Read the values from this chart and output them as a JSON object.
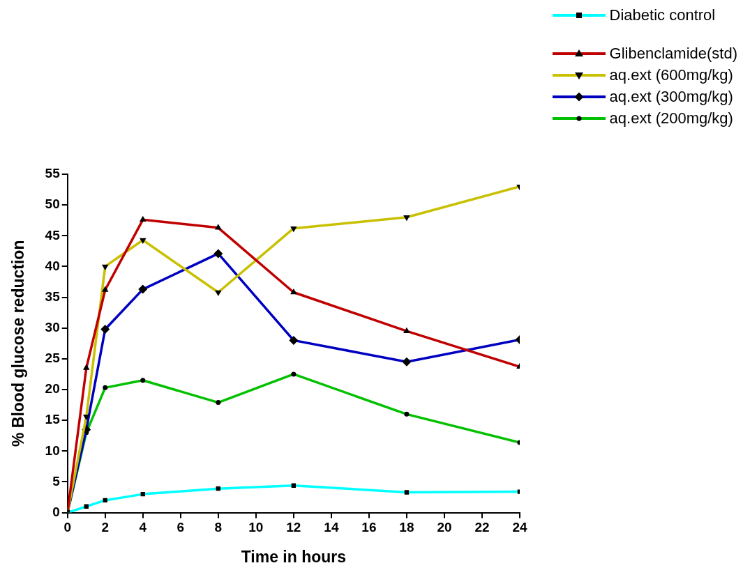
{
  "chart_data": {
    "type": "line",
    "xlabel": "Time in hours",
    "ylabel": "% Blood glucose reduction",
    "x": [
      0,
      1,
      2,
      4,
      8,
      12,
      18,
      24
    ],
    "xlim": [
      0,
      24
    ],
    "xticks": [
      0,
      2,
      4,
      6,
      8,
      10,
      12,
      14,
      16,
      18,
      20,
      22,
      24
    ],
    "ylim": [
      0,
      55
    ],
    "yticks": [
      0,
      5,
      10,
      15,
      20,
      25,
      30,
      35,
      40,
      45,
      50,
      55
    ],
    "grid": false,
    "legend": "top right",
    "line_style": "solid",
    "series": [
      {
        "name": "Diabetic control",
        "color": "#00ffff",
        "marker": "square",
        "values": [
          0,
          1,
          2,
          3,
          3.9,
          4.4,
          3.3,
          3.4
        ]
      },
      {
        "name": "Glibenclamide(std)",
        "color": "#c00000",
        "marker": "triangle",
        "values": [
          0,
          23.5,
          36.2,
          47.6,
          46.3,
          35.8,
          29.5,
          23.7
        ]
      },
      {
        "name": "aq.ext (600mg/kg)",
        "color": "#c8c000",
        "marker": "triangle-down",
        "values": [
          0,
          15.6,
          40,
          44.3,
          35.8,
          46.2,
          48,
          53
        ]
      },
      {
        "name": "aq.ext (300mg/kg)",
        "color": "#0000c0",
        "marker": "diamond",
        "values": [
          0,
          13.5,
          29.8,
          36.3,
          42.1,
          28,
          24.5,
          28.1
        ]
      },
      {
        "name": "aq.ext (200mg/kg)",
        "color": "#00c000",
        "marker": "circle",
        "values": [
          0,
          13,
          20.3,
          21.5,
          17.9,
          22.5,
          16,
          11.4
        ]
      }
    ]
  }
}
